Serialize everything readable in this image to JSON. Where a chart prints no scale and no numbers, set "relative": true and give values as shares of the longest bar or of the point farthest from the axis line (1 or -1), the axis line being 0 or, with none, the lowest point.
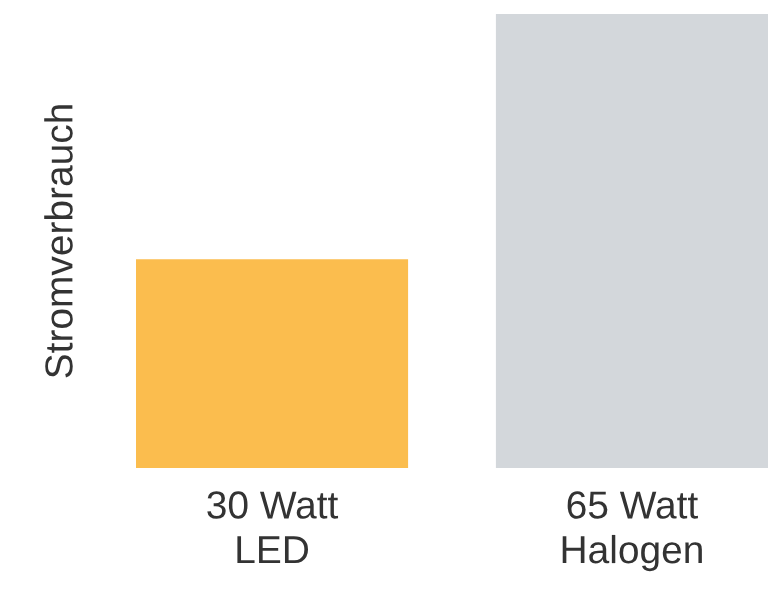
{
  "chart_data": {
    "type": "bar",
    "relative": true,
    "ylabel": "Stromverbrauch",
    "categories": [
      "30 Watt\nLED",
      "65 Watt\nHalogen"
    ],
    "values": [
      0.46,
      1
    ],
    "colors": [
      "#fbbd4e",
      "#d3d7db"
    ]
  }
}
